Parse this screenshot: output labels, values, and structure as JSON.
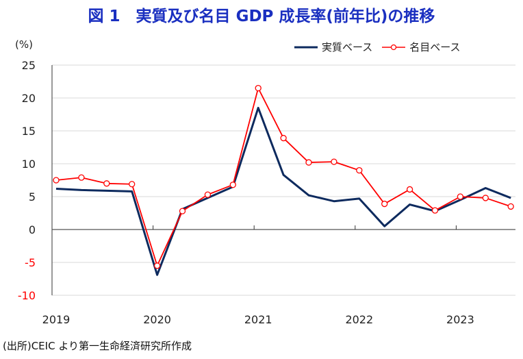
{
  "title": "図 1　実質及び名目 GDP 成長率(前年比)の推移",
  "source": "(出所)CEIC より第一生命経済研究所作成",
  "chart_data": {
    "type": "line",
    "title": "図 1　実質及び名目 GDP 成長率(前年比)の推移",
    "ylabel": "(%)",
    "ylim": [
      -10,
      25
    ],
    "yticks": [
      25,
      20,
      15,
      10,
      5,
      0,
      -5,
      -10
    ],
    "negative_tick_color": "#ff0000",
    "grid": true,
    "legend": "top-right",
    "xtick_labels": [
      "2019",
      "2020",
      "2021",
      "2022",
      "2023"
    ],
    "x": [
      "2019Q1",
      "2019Q2",
      "2019Q3",
      "2019Q4",
      "2020Q1",
      "2020Q2",
      "2020Q3",
      "2020Q4",
      "2021Q1",
      "2021Q2",
      "2021Q3",
      "2021Q4",
      "2022Q1",
      "2022Q2",
      "2022Q3",
      "2022Q4",
      "2023Q1",
      "2023Q2",
      "2023Q3"
    ],
    "series": [
      {
        "name": "実質ベース",
        "color": "#0d2a5e",
        "marker": "none",
        "values": [
          6.2,
          6.0,
          5.9,
          5.8,
          -6.9,
          3.1,
          4.8,
          6.5,
          18.5,
          8.3,
          5.2,
          4.3,
          4.7,
          0.5,
          3.8,
          2.8,
          4.5,
          6.3,
          4.8
        ]
      },
      {
        "name": "名目ベース",
        "color": "#ff0000",
        "marker": "circle",
        "values": [
          7.5,
          7.9,
          7.0,
          6.9,
          -5.5,
          2.8,
          5.3,
          6.8,
          21.5,
          13.9,
          10.2,
          10.3,
          9.0,
          3.9,
          6.1,
          2.9,
          5.0,
          4.8,
          3.5
        ]
      }
    ]
  }
}
